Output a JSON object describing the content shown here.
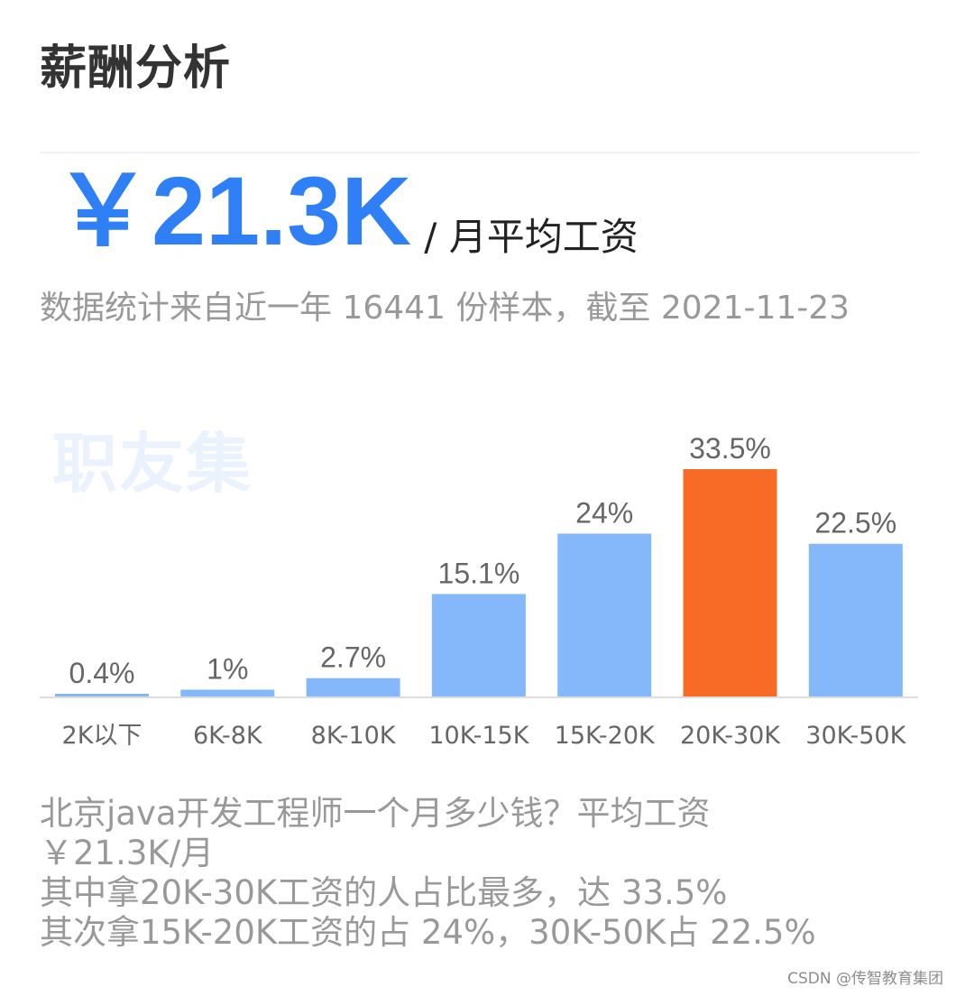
{
  "header": {
    "title": "薪酬分析"
  },
  "salary": {
    "value": "￥21.3K",
    "unit": "/ 月平均工资",
    "accent_color": "#2f80f6"
  },
  "subtitle": "数据统计来自近一年 16441 份样本，截至 2021-11-23",
  "watermark": "职友集",
  "chart_data": {
    "type": "bar",
    "categories": [
      "2K以下",
      "6K-8K",
      "8K-10K",
      "10K-15K",
      "15K-20K",
      "20K-30K",
      "30K-50K"
    ],
    "values": [
      0.4,
      1,
      2.7,
      15.1,
      24,
      33.5,
      22.5
    ],
    "data_labels": [
      "0.4%",
      "1%",
      "2.7%",
      "15.1%",
      "24%",
      "33.5%",
      "22.5%"
    ],
    "highlight_index": 5,
    "colors": {
      "bar": "#85b8fb",
      "highlight": "#f76b27",
      "label": "#666666",
      "axis": "#dddddd"
    },
    "ylim": [
      0,
      33.5
    ],
    "grid": false
  },
  "summary": {
    "lines": [
      "北京java开发工程师一个月多少钱？平均工资",
      "￥21.3K/月",
      "其中拿20K-30K工资的人占比最多，达 33.5%",
      "其次拿15K-20K工资的占 24%，30K-50K占 22.5%"
    ]
  },
  "footer": {
    "credit": "CSDN @传智教育集团"
  }
}
